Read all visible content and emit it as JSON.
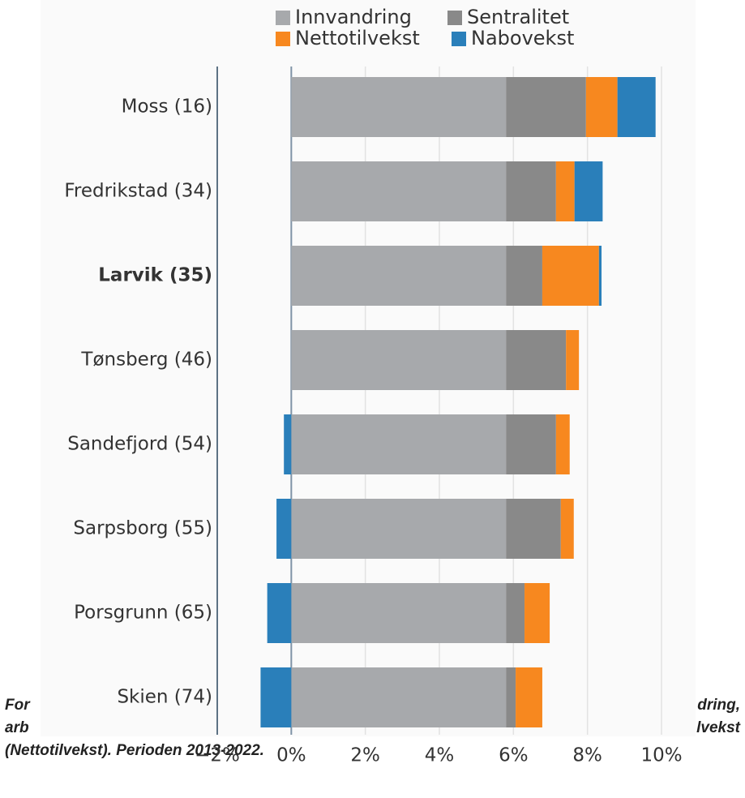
{
  "chart_data": {
    "type": "stacked-barh",
    "categories": [
      "Moss (16)",
      "Fredrikstad (34)",
      "Larvik (35)",
      "Tønsberg (46)",
      "Sandefjord (54)",
      "Sarpsborg (55)",
      "Porsgrunn (65)",
      "Skien (74)"
    ],
    "highlight_category": "Larvik (35)",
    "series": [
      {
        "name": "Innvandring",
        "color": "#a7a9ac",
        "values": [
          5.8,
          5.8,
          5.8,
          5.8,
          5.8,
          5.8,
          5.8,
          5.8
        ]
      },
      {
        "name": "Sentralitet",
        "color": "#898989",
        "values": [
          2.16,
          1.35,
          0.98,
          1.62,
          1.35,
          1.48,
          0.5,
          0.26
        ]
      },
      {
        "name": "Nettotilvekst",
        "color": "#f7881f",
        "values": [
          0.85,
          0.5,
          1.53,
          0.35,
          0.37,
          0.35,
          0.68,
          0.72
        ]
      },
      {
        "name": "Nabovekst",
        "color": "#2a7fba",
        "values": [
          1.03,
          0.76,
          0.07,
          0,
          -0.2,
          -0.4,
          -0.65,
          -0.83
        ]
      }
    ],
    "xlim": [
      -2,
      10.1
    ],
    "xticks": [
      {
        "value": -2,
        "label": "−2%"
      },
      {
        "value": 0,
        "label": "0%"
      },
      {
        "value": 2,
        "label": "2%"
      },
      {
        "value": 4,
        "label": "4%"
      },
      {
        "value": 6,
        "label": "6%"
      },
      {
        "value": 8,
        "label": "8%"
      },
      {
        "value": 10,
        "label": "10%"
      }
    ],
    "grid": true,
    "legend": "top",
    "caption_fragments": [
      "For",
      "dring,",
      "arb",
      "lvekst",
      "(Nettotilvekst). Perioden 2013-2022."
    ]
  }
}
